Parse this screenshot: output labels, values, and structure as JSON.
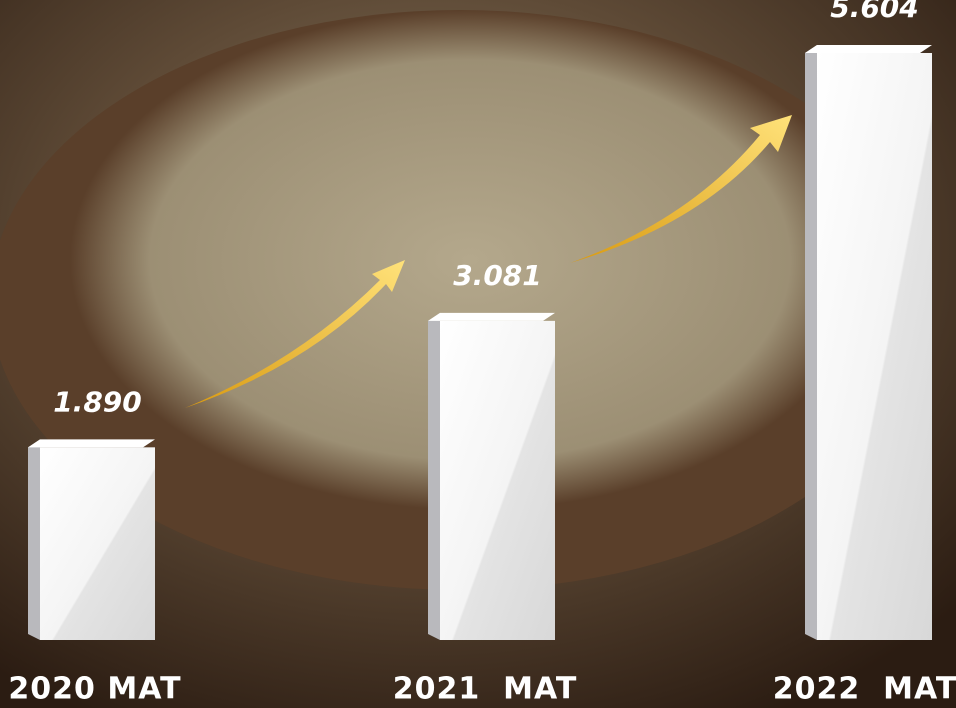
{
  "chart_data": {
    "type": "bar",
    "categories": [
      "2020 MAT",
      "2021  MAT",
      "2022  MAT"
    ],
    "values": [
      1890,
      3081,
      5604
    ],
    "value_labels": [
      "1.890",
      "3.081",
      "5.604"
    ],
    "color": "#f2f2f2"
  }
}
